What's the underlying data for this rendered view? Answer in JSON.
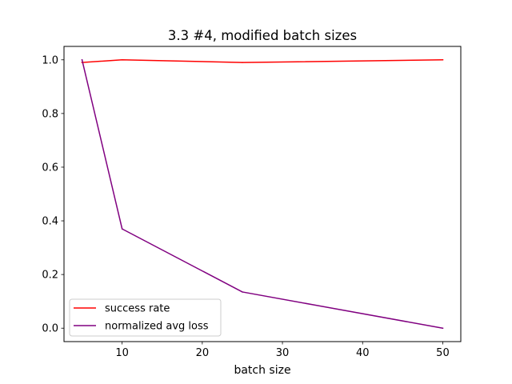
{
  "chart_data": {
    "type": "line",
    "title": "3.3 #4, modified batch sizes",
    "xlabel": "batch size",
    "ylabel": "",
    "x": [
      5,
      10,
      25,
      50
    ],
    "xlim": [
      2.75,
      52.25
    ],
    "ylim": [
      -0.05,
      1.05
    ],
    "xticks": [
      10,
      20,
      30,
      40,
      50
    ],
    "yticks": [
      0.0,
      0.2,
      0.4,
      0.6,
      0.8,
      1.0
    ],
    "xtick_labels": [
      "10",
      "20",
      "30",
      "40",
      "50"
    ],
    "ytick_labels": [
      "0.0",
      "0.2",
      "0.4",
      "0.6",
      "0.8",
      "1.0"
    ],
    "grid": false,
    "legend_position": "lower-left",
    "series": [
      {
        "name": "success rate",
        "color": "#ff0000",
        "values": [
          0.99,
          1.0,
          0.99,
          1.0
        ]
      },
      {
        "name": "normalized avg loss",
        "color": "#800080",
        "values": [
          1.0,
          0.37,
          0.135,
          0.0
        ]
      }
    ]
  }
}
